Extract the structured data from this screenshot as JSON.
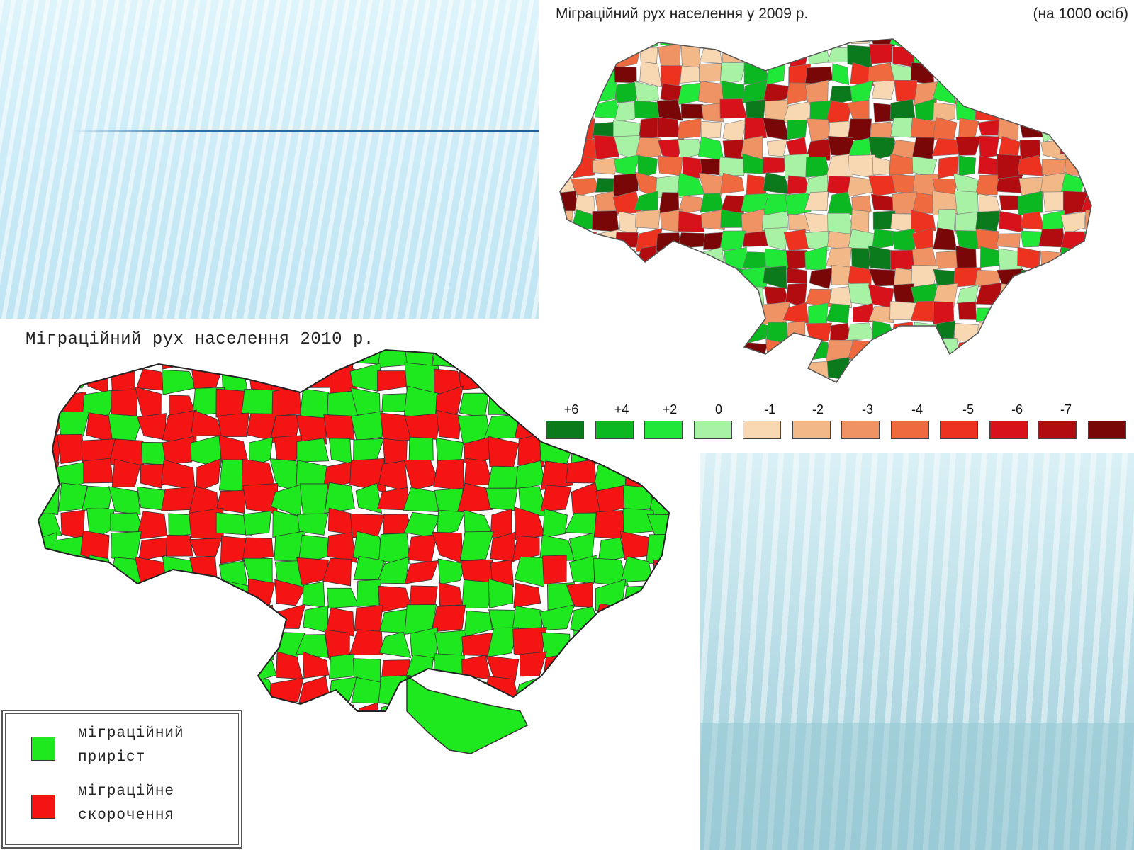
{
  "map_2009": {
    "title": "Міграційний рух населення у 2009 р.",
    "unit": "(на 1000 осіб)",
    "legend": {
      "labels": [
        "+6",
        "+4",
        "+2",
        "0",
        "-1",
        "-2",
        "-3",
        "-4",
        "-5",
        "-6",
        "-7"
      ],
      "colors": [
        "#0b7a1c",
        "#0cb822",
        "#1fe838",
        "#a7f2a4",
        "#f7d8b2",
        "#f3b887",
        "#ef9264",
        "#ef6a3e",
        "#ee3220",
        "#d8121a",
        "#b20b10",
        "#7a0708"
      ]
    }
  },
  "map_2010": {
    "title": "Міграційний рух населення 2010 р.",
    "legend": [
      {
        "label_line1": "міграційний",
        "label_line2": "приріст",
        "color": "#1ee81e"
      },
      {
        "label_line1": "міграційне",
        "label_line2": "скорочення",
        "color": "#f51414"
      }
    ]
  }
}
